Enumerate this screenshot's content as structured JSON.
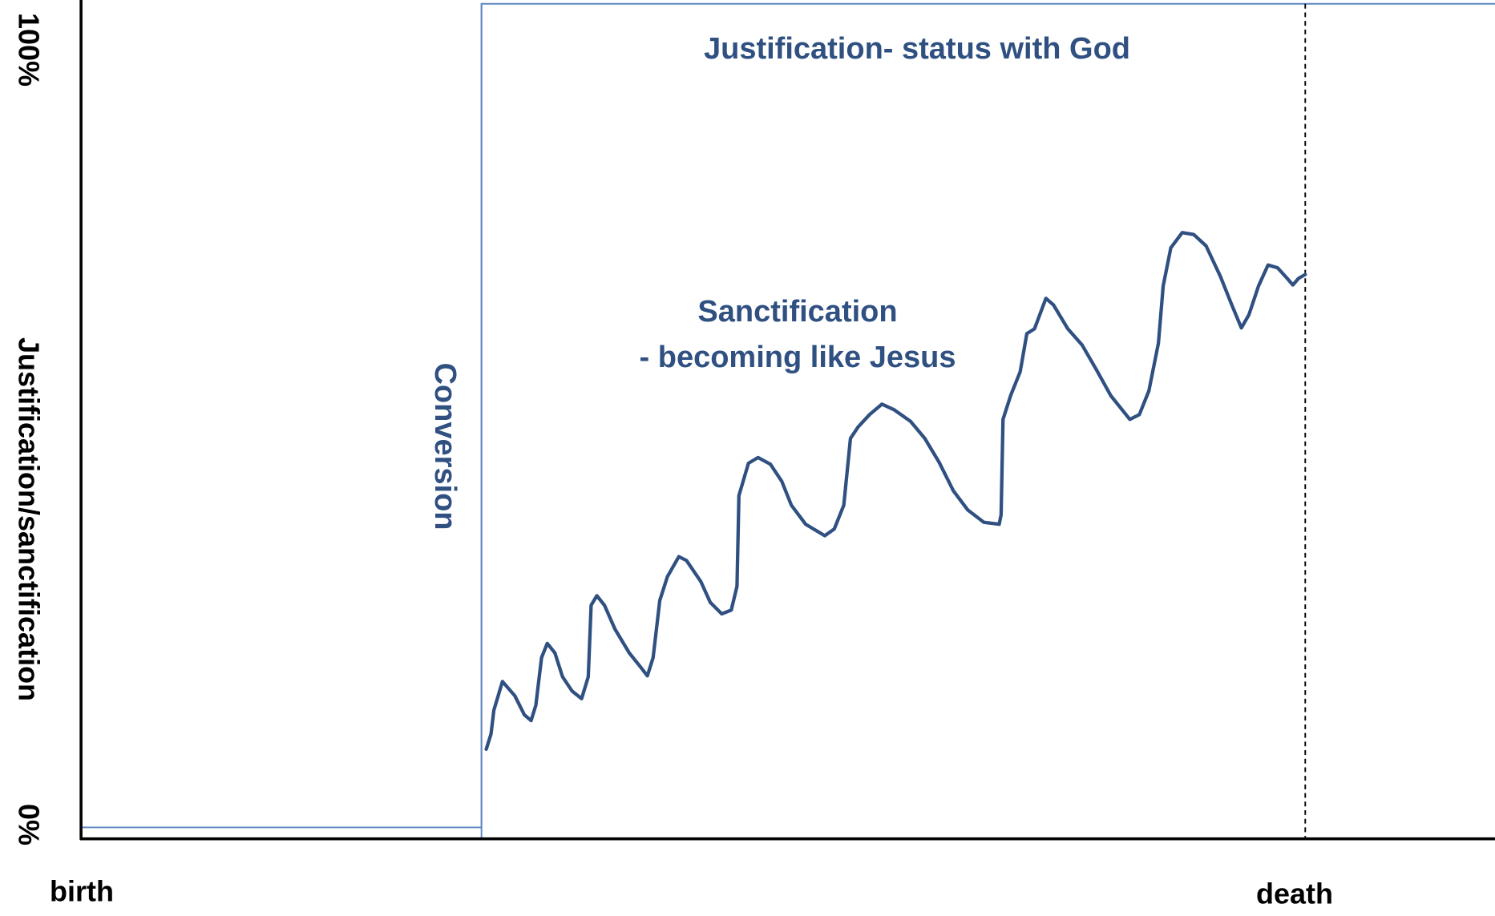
{
  "y_axis": {
    "label": "Justification/sanctification",
    "top": "100%",
    "bottom": "0%"
  },
  "x_axis": {
    "start": "birth",
    "end": "death"
  },
  "conversion": "Conversion",
  "justification": "Justification- status with God",
  "sanctification": {
    "title": "Sanctification",
    "subtitle": "- becoming like Jesus"
  }
}
